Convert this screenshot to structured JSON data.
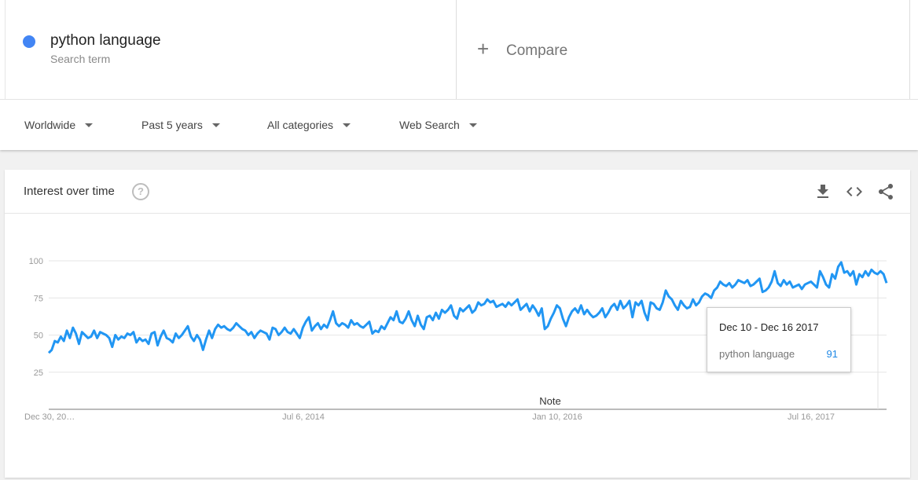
{
  "search_term": {
    "name": "python language",
    "subtitle": "Search term",
    "color": "#4285f4"
  },
  "compare": {
    "label": "Compare"
  },
  "filters": {
    "region": "Worldwide",
    "time": "Past 5 years",
    "category": "All categories",
    "property": "Web Search"
  },
  "card": {
    "title": "Interest over time",
    "icons": [
      "help-icon",
      "download-icon",
      "embed-icon",
      "share-icon"
    ]
  },
  "tooltip": {
    "date": "Dec 10 - Dec 16 2017",
    "term": "python language",
    "value": "91"
  },
  "chart_data": {
    "type": "line",
    "title": "",
    "xlabel": "",
    "ylabel": "",
    "ylim": [
      0,
      100
    ],
    "yticks": [
      25,
      50,
      75,
      100
    ],
    "x_tick_labels": [
      "Dec 30, 20…",
      "Jul 6, 2014",
      "Jan 10, 2016",
      "Jul 16, 2017"
    ],
    "x_range": [
      "Dec 30, 2012",
      "Dec 23, 2017"
    ],
    "annotation": "Note",
    "grid": true,
    "line_color": "#2196f3",
    "series": [
      {
        "name": "python language",
        "values": [
          38,
          40,
          46,
          45,
          49,
          46,
          53,
          48,
          55,
          51,
          44,
          52,
          50,
          48,
          49,
          53,
          48,
          52,
          51,
          50,
          48,
          42,
          50,
          47,
          49,
          48,
          51,
          50,
          52,
          45,
          48,
          46,
          47,
          44,
          51,
          52,
          43,
          49,
          53,
          48,
          47,
          45,
          51,
          48,
          50,
          53,
          56,
          49,
          46,
          50,
          47,
          40,
          47,
          53,
          48,
          54,
          57,
          55,
          56,
          54,
          53,
          55,
          58,
          56,
          54,
          53,
          50,
          52,
          48,
          51,
          53,
          52,
          51,
          47,
          55,
          54,
          50,
          52,
          55,
          52,
          51,
          54,
          51,
          48,
          55,
          59,
          62,
          53,
          56,
          58,
          54,
          57,
          55,
          60,
          66,
          58,
          56,
          58,
          57,
          55,
          60,
          57,
          58,
          56,
          55,
          57,
          59,
          51,
          53,
          52,
          56,
          54,
          58,
          62,
          60,
          66,
          59,
          58,
          61,
          66,
          60,
          56,
          63,
          57,
          54,
          62,
          63,
          60,
          65,
          61,
          67,
          65,
          67,
          70,
          63,
          61,
          68,
          66,
          68,
          70,
          65,
          67,
          72,
          70,
          71,
          74,
          72,
          73,
          69,
          70,
          71,
          69,
          72,
          70,
          72,
          74,
          67,
          69,
          71,
          66,
          70,
          67,
          63,
          68,
          54,
          56,
          61,
          65,
          70,
          68,
          61,
          56,
          62,
          66,
          68,
          65,
          70,
          64,
          67,
          64,
          62,
          63,
          65,
          68,
          62,
          65,
          69,
          71,
          67,
          73,
          68,
          70,
          73,
          62,
          72,
          70,
          73,
          65,
          60,
          72,
          71,
          68,
          67,
          72,
          80,
          76,
          74,
          70,
          67,
          73,
          70,
          68,
          69,
          74,
          70,
          72,
          76,
          78,
          77,
          75,
          80,
          82,
          86,
          84,
          83,
          85,
          82,
          84,
          87,
          86,
          85,
          87,
          83,
          84,
          86,
          88,
          79,
          80,
          82,
          86,
          93,
          85,
          83,
          87,
          84,
          86,
          82,
          83,
          84,
          81,
          84,
          85,
          86,
          84,
          82,
          93,
          89,
          84,
          82,
          91,
          88,
          96,
          99,
          92,
          93,
          90,
          93,
          84,
          91,
          89,
          93,
          90,
          94,
          92,
          91,
          93,
          91,
          85
        ]
      }
    ]
  }
}
